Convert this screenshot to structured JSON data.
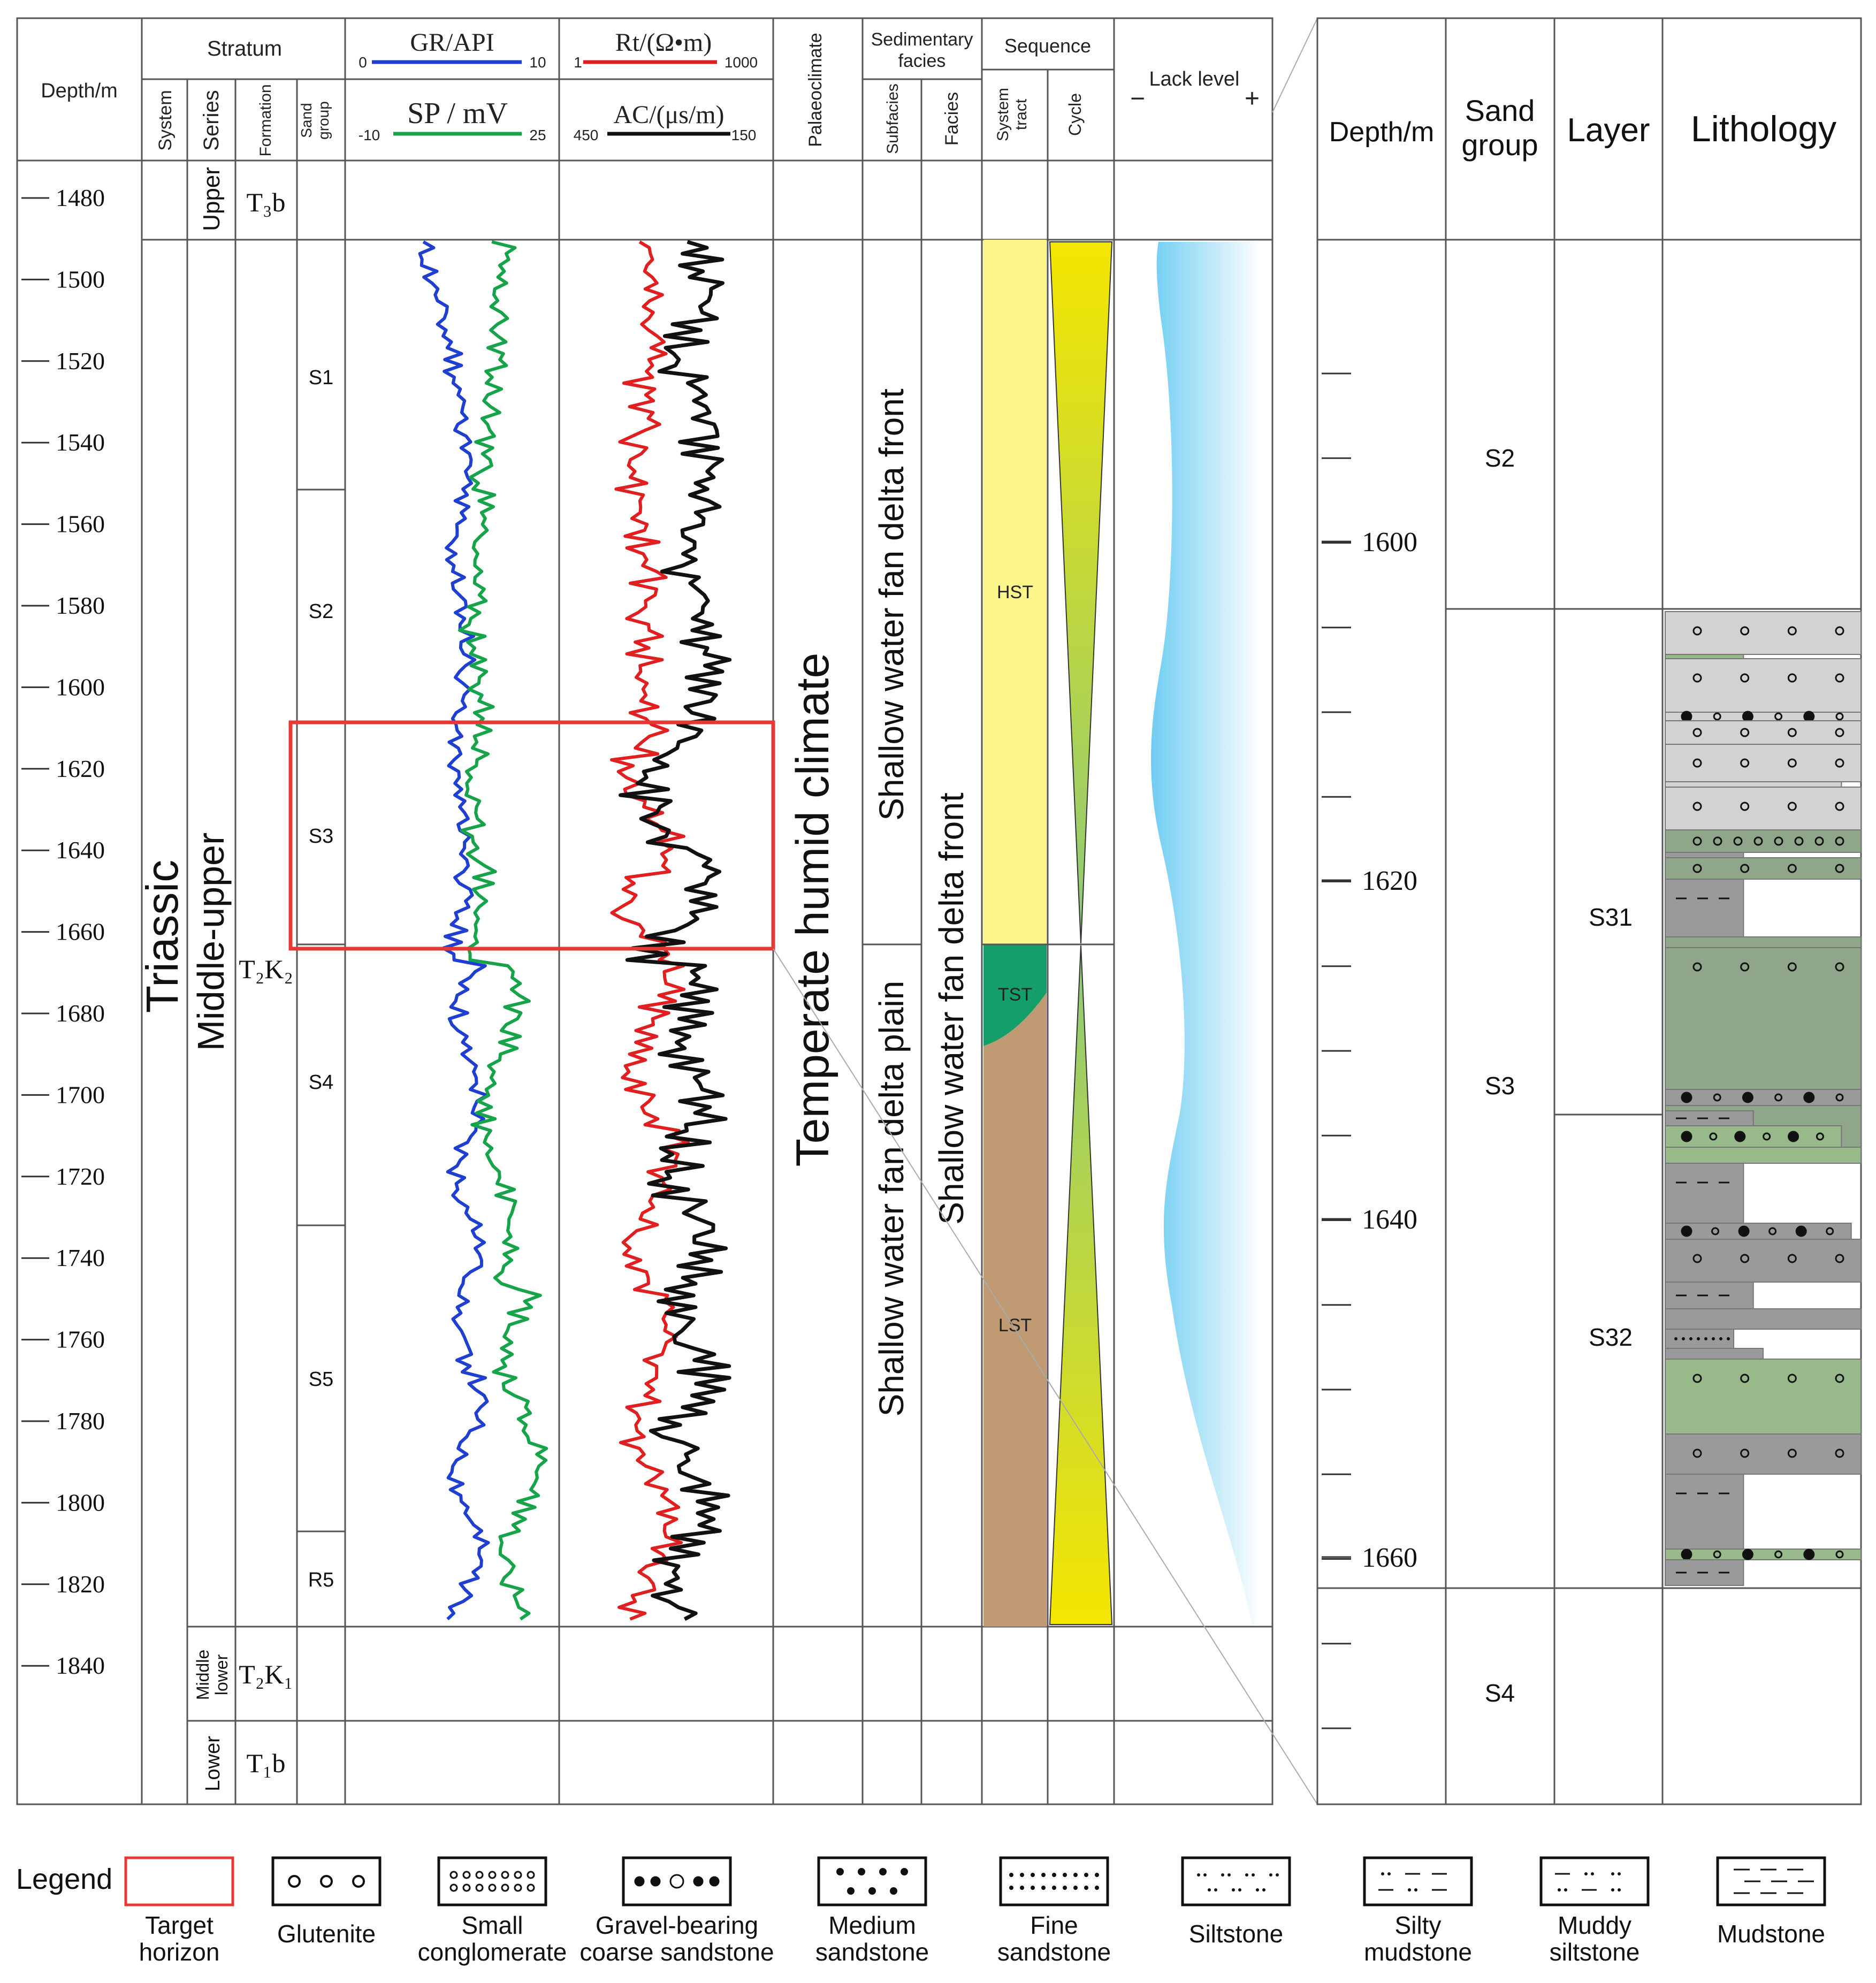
{
  "colors": {
    "gr": "#1f3fd0",
    "sp": "#16a34a",
    "rt": "#e02020",
    "ac": "#111111",
    "target": "#e53935",
    "hst": "#fbf58a",
    "tst": "#139e6a",
    "lst": "#bf9a72",
    "lake": "#7fd3f3",
    "glutenite_bg": "#d2d2d2",
    "green_rock": "#8fa68a",
    "dark_rock": "#9a9a9a",
    "light_green": "#98b98a"
  },
  "headers": {
    "depth": "Depth/m",
    "stratum": "Stratum",
    "system": "System",
    "series": "Series",
    "formation": "Formation",
    "sand_group_1": "Sand",
    "sand_group_2": "group",
    "gr_label": "GR/API",
    "gr_min": "0",
    "gr_max": "10",
    "sp_label": "SP / mV",
    "sp_min": "-10",
    "sp_max": "25",
    "rt_label": "Rt/(Ω•m)",
    "rt_min": "1",
    "rt_max": "1000",
    "ac_label": "AC/(μs/m)",
    "ac_min": "450",
    "ac_max": "150",
    "palaeoclimate": "Palaeoclimate",
    "sed_facies_1": "Sedimentary",
    "sed_facies_2": "facies",
    "subfacies": "Subfacies",
    "facies": "Facies",
    "sequence": "Sequence",
    "system_tract_1": "System",
    "system_tract_2": "tract",
    "cycle": "Cycle",
    "lack_level": "Lack level",
    "lack_minus": "−",
    "lack_plus": "+"
  },
  "depth_axis": {
    "ticks": [
      "1480",
      "1500",
      "1520",
      "1540",
      "1560",
      "1580",
      "1600",
      "1620",
      "1640",
      "1660",
      "1680",
      "1700",
      "1720",
      "1740",
      "1760",
      "1780",
      "1800",
      "1820",
      "1840"
    ]
  },
  "stratum": {
    "system": "Triassic",
    "series_upper": "Upper",
    "series_middle_upper": "Middle-upper",
    "series_middle_lower_1": "Middle",
    "series_middle_lower_2": "lower",
    "series_lower": "Lower",
    "formation_t3b": "T₃b",
    "formation_t2k2": "T₂K₂",
    "formation_t2k1": "T₂K₁",
    "formation_t1b": "T₁b",
    "sand_groups": [
      "S1",
      "S2",
      "S3",
      "S4",
      "S5",
      "R5"
    ]
  },
  "palaeoclimate_text": "Temperate humid climate",
  "subfacies_front": "Shallow water fan delta front",
  "subfacies_plain": "Shallow water fan delta plain",
  "facies_text": "Shallow water fan delta front",
  "system_tracts": [
    "HST",
    "TST",
    "LST"
  ],
  "detail": {
    "depth": "Depth/m",
    "sand_group_1": "Sand",
    "sand_group_2": "group",
    "layer": "Layer",
    "lithology": "Lithology",
    "ticks": [
      "1600",
      "1620",
      "1640",
      "1660"
    ],
    "groups": [
      "S2",
      "S3",
      "S4"
    ],
    "layers": [
      "S31",
      "S32"
    ]
  },
  "legend": {
    "title": "Legend",
    "items": [
      {
        "l1": "Target",
        "l2": "horizon"
      },
      {
        "l1": "Glutenite",
        "l2": ""
      },
      {
        "l1": "Small",
        "l2": "conglomerate"
      },
      {
        "l1": "Gravel-bearing",
        "l2": "coarse sandstone"
      },
      {
        "l1": "Medium",
        "l2": "sandstone"
      },
      {
        "l1": "Fine",
        "l2": "sandstone"
      },
      {
        "l1": "Siltstone",
        "l2": ""
      },
      {
        "l1": "Silty",
        "l2": "mudstone"
      },
      {
        "l1": "Muddy",
        "l2": "siltstone"
      },
      {
        "l1": "Mudstone",
        "l2": ""
      }
    ]
  }
}
